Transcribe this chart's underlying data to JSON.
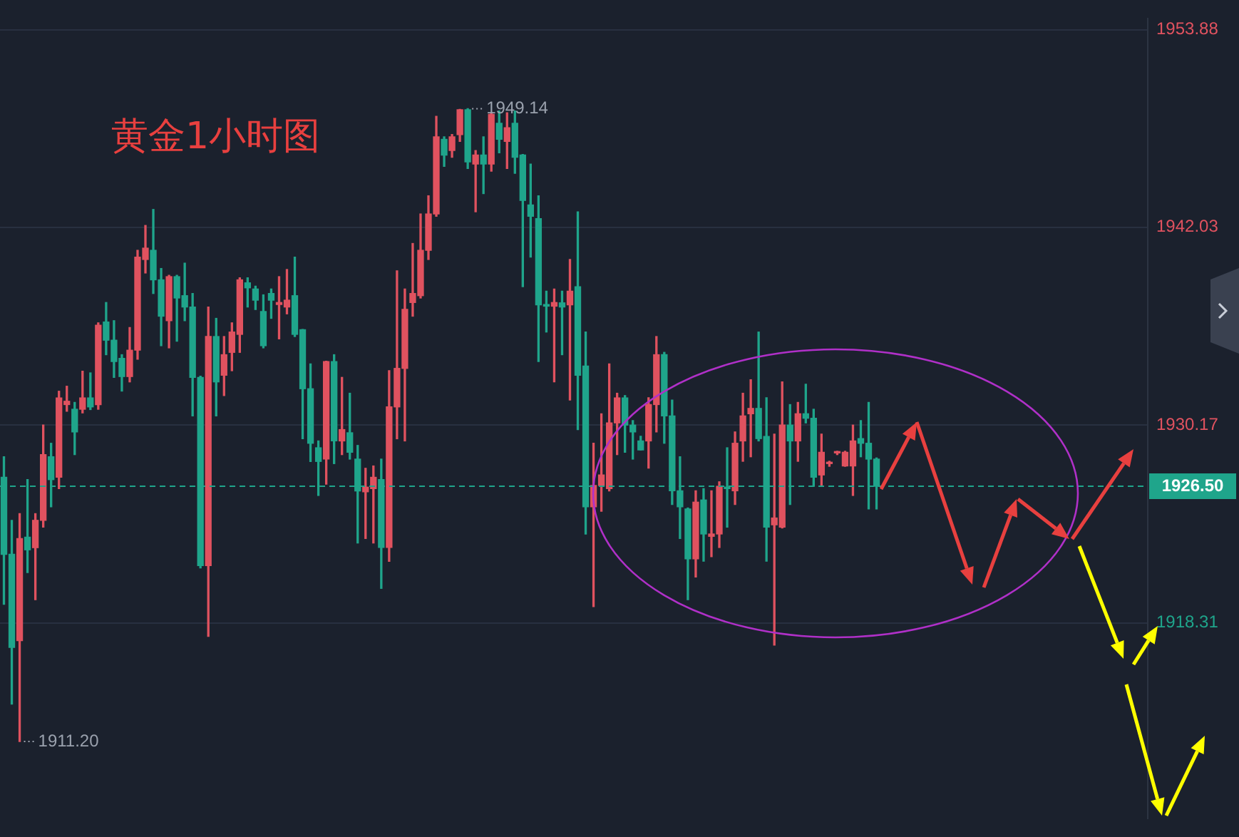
{
  "chart_data": {
    "type": "candlestick",
    "title": "黄金1小时图",
    "categories": [
      null,
      null,
      null,
      null,
      null,
      null,
      null,
      null,
      null,
      null,
      null,
      null,
      null,
      null,
      null,
      null,
      null,
      null,
      null,
      null,
      null,
      null,
      null,
      null,
      null,
      null,
      null,
      null,
      null,
      null,
      null,
      null,
      null,
      null,
      null,
      null,
      null,
      null,
      null,
      null,
      null,
      null,
      null,
      null,
      null,
      null,
      null,
      null,
      null,
      null,
      null,
      null,
      null,
      null,
      null,
      null,
      null,
      null,
      null,
      null,
      null,
      null,
      null,
      null,
      null,
      null,
      null,
      null,
      null,
      null,
      null,
      null,
      null,
      null,
      null,
      null,
      null,
      null,
      null,
      null,
      null,
      null,
      null,
      null,
      null,
      null,
      null,
      null,
      null,
      null,
      null,
      null,
      null,
      null,
      null,
      null,
      null,
      null,
      null,
      null,
      null,
      null,
      null,
      null,
      null,
      null,
      null,
      null,
      null,
      null,
      null,
      null,
      null,
      null,
      null,
      null,
      null,
      null,
      null,
      null,
      null,
      null,
      null,
      null,
      null,
      null,
      null,
      null,
      null,
      null,
      null,
      null,
      null,
      null,
      null,
      null,
      null,
      null,
      null,
      null,
      null,
      null,
      null,
      null,
      null,
      null
    ],
    "ohlc": [
      [
        1927.04,
        1928.27,
        1919.42,
        1922.42
      ],
      [
        1922.42,
        1924.46,
        1913.44,
        1916.84
      ],
      [
        1917.25,
        1924.86,
        1911.2,
        1923.37
      ],
      [
        1923.45,
        1926.9,
        1921.33,
        1922.69
      ],
      [
        1922.82,
        1924.86,
        1919.7,
        1924.46
      ],
      [
        1924.46,
        1930.17,
        1924.05,
        1928.4
      ],
      [
        1928.27,
        1929.08,
        1925.27,
        1926.9
      ],
      [
        1927.04,
        1932.2,
        1926.36,
        1931.8
      ],
      [
        1931.4,
        1932.5,
        1931.0,
        1931.6
      ],
      [
        1931.12,
        1931.53,
        1928.4,
        1929.76
      ],
      [
        1931.12,
        1933.4,
        1930.9,
        1931.8
      ],
      [
        1931.8,
        1933.3,
        1931.1,
        1931.26
      ],
      [
        1931.4,
        1936.3,
        1931.12,
        1936.16
      ],
      [
        1936.35,
        1937.52,
        1934.39,
        1935.26
      ],
      [
        1935.26,
        1936.43,
        1933.03,
        1933.98
      ],
      [
        1934.17,
        1934.39,
        1932.21,
        1933.08
      ],
      [
        1933.08,
        1936.02,
        1932.76,
        1934.66
      ],
      [
        1934.66,
        1940.65,
        1934.12,
        1940.24
      ],
      [
        1940.1,
        1942.14,
        1939.29,
        1940.78
      ],
      [
        1940.65,
        1943.1,
        1938.06,
        1938.88
      ],
      [
        1938.88,
        1939.56,
        1934.93,
        1936.7
      ],
      [
        1936.43,
        1939.15,
        1934.8,
        1939.07
      ],
      [
        1939.07,
        1939.15,
        1935.2,
        1937.79
      ],
      [
        1937.93,
        1939.88,
        1936.43,
        1937.25
      ],
      [
        1937.25,
        1938.06,
        1930.72,
        1933.03
      ],
      [
        1933.03,
        1933.1,
        1921.6,
        1921.74
      ],
      [
        1921.74,
        1937.25,
        1917.5,
        1935.48
      ],
      [
        1935.48,
        1936.57,
        1930.72,
        1932.76
      ],
      [
        1933.16,
        1935.48,
        1931.94,
        1934.39
      ],
      [
        1934.53,
        1936.3,
        1933.43,
        1935.75
      ],
      [
        1935.61,
        1939.0,
        1934.53,
        1938.88
      ],
      [
        1938.7,
        1939.0,
        1937.25,
        1938.4
      ],
      [
        1938.33,
        1938.5,
        1937.1,
        1937.66
      ],
      [
        1936.98,
        1937.98,
        1934.8,
        1934.93
      ],
      [
        1938.06,
        1938.33,
        1936.57,
        1937.66
      ],
      [
        1937.4,
        1939.07,
        1935.34,
        1937.52
      ],
      [
        1937.25,
        1939.5,
        1936.84,
        1937.66
      ],
      [
        1937.93,
        1940.24,
        1935.48,
        1935.61
      ],
      [
        1935.89,
        1935.9,
        1929.35,
        1932.35
      ],
      [
        1932.35,
        1933.84,
        1927.99,
        1929.08
      ],
      [
        1928.81,
        1929.22,
        1925.95,
        1927.99
      ],
      [
        1928.13,
        1934.0,
        1926.63,
        1933.98
      ],
      [
        1933.98,
        1934.39,
        1927.86,
        1929.22
      ],
      [
        1929.22,
        1933.03,
        1928.4,
        1929.9
      ],
      [
        1929.71,
        1932.08,
        1928.13,
        1928.54
      ],
      [
        1928.13,
        1928.95,
        1923.1,
        1926.22
      ],
      [
        1926.17,
        1927.58,
        1923.37,
        1926.45
      ],
      [
        1926.36,
        1927.72,
        1923.1,
        1927.04
      ],
      [
        1926.9,
        1928.13,
        1920.38,
        1922.83
      ],
      [
        1922.83,
        1933.43,
        1922.0,
        1931.26
      ],
      [
        1931.26,
        1939.42,
        1929.35,
        1933.57
      ],
      [
        1933.57,
        1938.33,
        1929.22,
        1937.11
      ],
      [
        1937.52,
        1941.06,
        1936.7,
        1938.06
      ],
      [
        1937.93,
        1942.83,
        1937.79,
        1940.65
      ],
      [
        1940.65,
        1943.92,
        1940.1,
        1942.83
      ],
      [
        1942.83,
        1948.68,
        1942.69,
        1947.45
      ],
      [
        1947.31,
        1947.45,
        1945.68,
        1946.36
      ],
      [
        1946.63,
        1947.59,
        1946.23,
        1947.45
      ],
      [
        1947.59,
        1949.1,
        1947.18,
        1949.08
      ],
      [
        1949.08,
        1949.14,
        1945.55,
        1945.95
      ],
      [
        1945.82,
        1946.63,
        1942.96,
        1946.36
      ],
      [
        1946.36,
        1947.45,
        1944.05,
        1945.82
      ],
      [
        1945.82,
        1948.9,
        1945.4,
        1948.8
      ],
      [
        1948.27,
        1949.0,
        1946.5,
        1947.31
      ],
      [
        1947.18,
        1948.9,
        1945.55,
        1948.0
      ],
      [
        1948.27,
        1949.0,
        1945.27,
        1946.23
      ],
      [
        1946.36,
        1946.4,
        1938.47,
        1943.64
      ],
      [
        1943.37,
        1945.82,
        1940.24,
        1942.69
      ],
      [
        1942.55,
        1943.92,
        1933.98,
        1937.38
      ],
      [
        1937.4,
        1938.2,
        1935.75,
        1937.3
      ],
      [
        1937.3,
        1938.33,
        1932.76,
        1937.52
      ],
      [
        1937.5,
        1938.2,
        1934.39,
        1937.25
      ],
      [
        1937.38,
        1940.1,
        1931.67,
        1938.2
      ],
      [
        1938.47,
        1942.96,
        1929.9,
        1933.16
      ],
      [
        1933.71,
        1935.75,
        1923.64,
        1925.27
      ],
      [
        1925.27,
        1929.08,
        1919.29,
        1926.55
      ],
      [
        1926.55,
        1930.85,
        1925.0,
        1927.18
      ],
      [
        1926.36,
        1933.84,
        1926.22,
        1930.3
      ],
      [
        1930.3,
        1932.08,
        1928.4,
        1931.8
      ],
      [
        1931.8,
        1931.94,
        1928.54,
        1930.17
      ],
      [
        1930.17,
        1930.44,
        1928.13,
        1929.76
      ],
      [
        1929.22,
        1929.5,
        1928.68,
        1928.68
      ],
      [
        1929.22,
        1931.81,
        1927.59,
        1931.4
      ],
      [
        1931.4,
        1935.48,
        1929.76,
        1934.39
      ],
      [
        1934.39,
        1934.53,
        1929.08,
        1930.72
      ],
      [
        1930.72,
        1931.67,
        1925.41,
        1926.23
      ],
      [
        1926.23,
        1928.27,
        1923.37,
        1925.27
      ],
      [
        1925.14,
        1925.2,
        1919.7,
        1922.15
      ],
      [
        1922.15,
        1926.23,
        1921.06,
        1925.55
      ],
      [
        1925.68,
        1926.36,
        1922.01,
        1923.64
      ],
      [
        1923.5,
        1926.23,
        1922.28,
        1923.64
      ],
      [
        1923.64,
        1926.77,
        1922.83,
        1926.5
      ],
      [
        1926.45,
        1928.81,
        1924.05,
        1926.36
      ],
      [
        1926.23,
        1929.76,
        1925.41,
        1929.08
      ],
      [
        1929.22,
        1932.08,
        1928.0,
        1930.72
      ],
      [
        1930.85,
        1932.89,
        1928.27,
        1931.17
      ],
      [
        1931.17,
        1935.75,
        1929.22,
        1929.36
      ],
      [
        1929.49,
        1931.81,
        1922.01,
        1924.05
      ],
      [
        1924.19,
        1929.63,
        1916.98,
        1924.6
      ],
      [
        1924.05,
        1932.76,
        1924.0,
        1930.17
      ],
      [
        1930.17,
        1931.4,
        1925.41,
        1929.22
      ],
      [
        1929.22,
        1931.53,
        1928.0,
        1930.85
      ],
      [
        1930.85,
        1932.62,
        1930.3,
        1930.58
      ],
      [
        1930.58,
        1931.12,
        1926.5,
        1927.04
      ],
      [
        1927.18,
        1929.63,
        1926.5,
        1928.54
      ],
      [
        1927.86,
        1928.0,
        1927.7,
        1927.86
      ],
      [
        1928.5,
        1928.6,
        1928.4,
        1928.54
      ],
      [
        1927.72,
        1928.6,
        1927.7,
        1928.54
      ],
      [
        1927.72,
        1930.17,
        1925.95,
        1929.22
      ],
      [
        1929.36,
        1930.44,
        1928.27,
        1929.08
      ],
      [
        1929.08,
        1931.53,
        1925.14,
        1928.13
      ],
      [
        1928.13,
        1928.2,
        1925.14,
        1926.5
      ],
      null,
      null,
      null,
      null,
      null,
      null,
      null,
      null,
      null,
      null,
      null,
      null,
      null,
      null,
      null,
      null,
      null,
      null,
      null,
      null,
      null,
      null,
      null,
      null,
      null,
      null,
      null,
      null,
      null,
      null,
      null,
      null,
      null,
      null
    ],
    "colors": [
      "#1fa58b",
      "#1fa58b",
      "#e0525f",
      "#1fa58b",
      "#e0525f",
      "#e0525f",
      "#1fa58b",
      "#e0525f",
      "#e0525f",
      "#1fa58b",
      "#e0525f",
      "#1fa58b",
      "#e0525f",
      "#1fa58b",
      "#1fa58b",
      "#1fa58b",
      "#e0525f",
      "#e0525f",
      "#e0525f",
      "#1fa58b",
      "#1fa58b",
      "#e0525f",
      "#1fa58b",
      "#1fa58b",
      "#1fa58b",
      "#1fa58b",
      "#e0525f",
      "#1fa58b",
      "#e0525f",
      "#e0525f",
      "#e0525f",
      "#1fa58b",
      "#1fa58b",
      "#1fa58b",
      "#1fa58b",
      "#e0525f",
      "#e0525f",
      "#1fa58b",
      "#1fa58b",
      "#1fa58b",
      "#1fa58b",
      "#e0525f",
      "#1fa58b",
      "#e0525f",
      "#1fa58b",
      "#1fa58b",
      "#e0525f",
      "#e0525f",
      "#1fa58b",
      "#e0525f",
      "#e0525f",
      "#e0525f",
      "#e0525f",
      "#e0525f",
      "#e0525f",
      "#e0525f",
      "#1fa58b",
      "#e0525f",
      "#e0525f",
      "#1fa58b",
      "#e0525f",
      "#1fa58b",
      "#e0525f",
      "#1fa58b",
      "#e0525f",
      "#1fa58b",
      "#1fa58b",
      "#1fa58b",
      "#1fa58b",
      "#1fa58b",
      "#e0525f",
      "#1fa58b",
      "#e0525f",
      "#1fa58b",
      "#1fa58b",
      "#e0525f",
      "#e0525f",
      "#e0525f",
      "#e0525f",
      "#1fa58b",
      "#1fa58b",
      "#1fa58b",
      "#e0525f",
      "#e0525f",
      "#1fa58b",
      "#1fa58b",
      "#1fa58b",
      "#1fa58b",
      "#e0525f",
      "#1fa58b",
      "#e0525f",
      "#e0525f",
      "#1fa58b",
      "#e0525f",
      "#e0525f",
      "#e0525f",
      "#1fa58b",
      "#1fa58b",
      "#e0525f",
      "#e0525f",
      "#1fa58b",
      "#e0525f",
      "#1fa58b",
      "#1fa58b",
      "#e0525f",
      "#e0525f",
      "#e0525f",
      "#e0525f",
      "#e0525f",
      "#1fa58b",
      "#1fa58b",
      "#1fa58b",
      null,
      null,
      null,
      null,
      null,
      null,
      null,
      null,
      null,
      null,
      null,
      null,
      null,
      null,
      null,
      null,
      null,
      null,
      null,
      null,
      null,
      null,
      null,
      null,
      null,
      null,
      null,
      null,
      null,
      null,
      null,
      null,
      null,
      null
    ],
    "ylim": [
      1906.6,
      1954.53
    ],
    "yticks": [
      1953.88,
      1942.03,
      1930.17,
      1918.31
    ],
    "tick_labels": "y",
    "grid": "y",
    "legend": false,
    "ref_lines": [
      {
        "axis": "y",
        "value": 1926.5,
        "label": "1926.50",
        "color": "#1fa58b",
        "line_style": "dashed"
      }
    ],
    "annotations": [
      "1949.14",
      "1911.20"
    ]
  }
}
